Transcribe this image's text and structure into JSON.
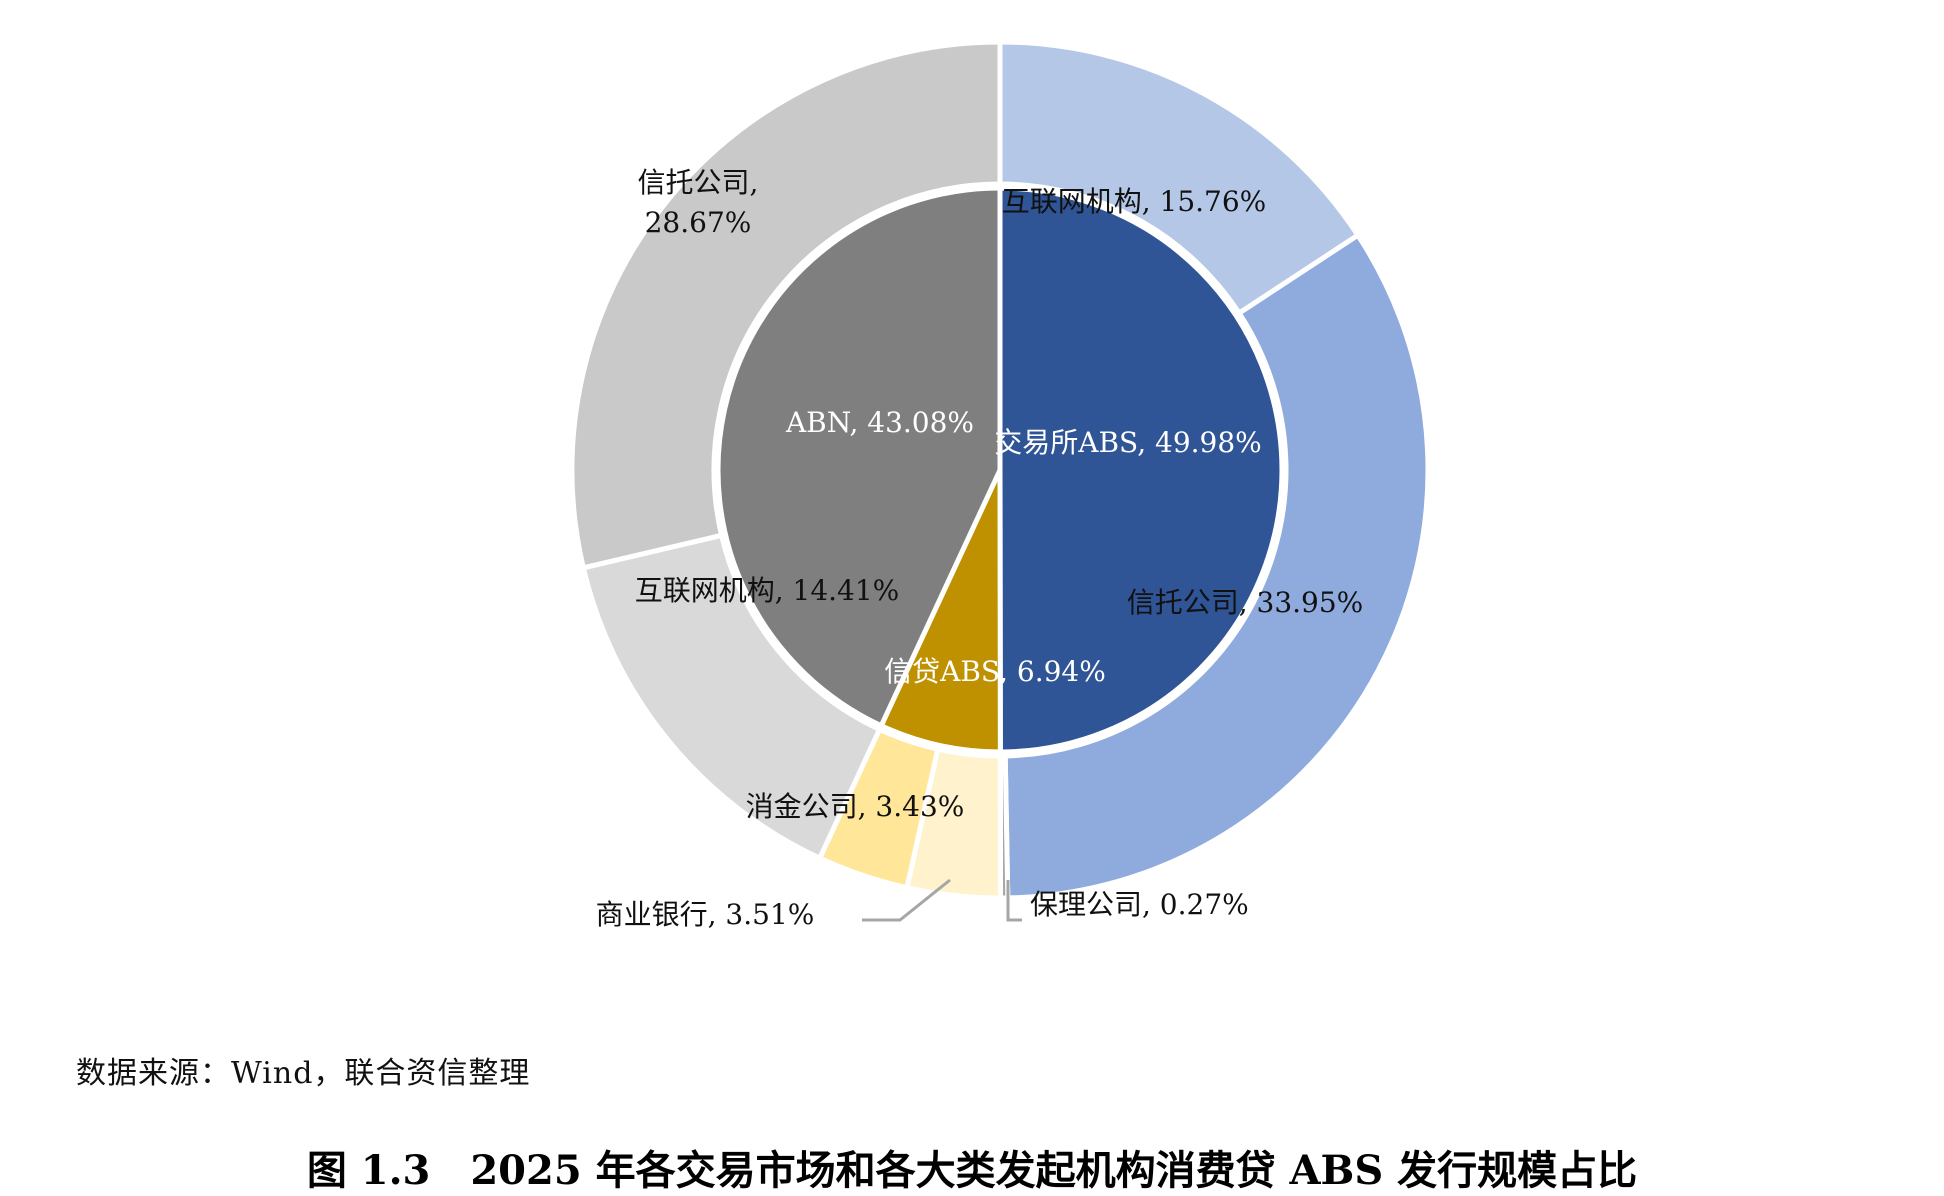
{
  "chart_data": {
    "type": "pie",
    "title": "",
    "inner_ring": [
      {
        "label": "交易所ABS",
        "value": 49.98,
        "text": "交易所ABS, 49.98%",
        "color": "#2f5597"
      },
      {
        "label": "信贷ABS",
        "value": 6.94,
        "text": "信贷ABS, 6.94%",
        "color": "#bf9000"
      },
      {
        "label": "ABN",
        "value": 43.08,
        "text": "ABN, 43.08%",
        "color": "#7f7f7f"
      }
    ],
    "outer_ring": [
      {
        "label": "互联网机构",
        "value": 15.76,
        "text": "互联网机构, 15.76%",
        "color": "#b4c7e7"
      },
      {
        "label": "信托公司",
        "value": 33.95,
        "text": "信托公司, 33.95%",
        "color": "#8faadc"
      },
      {
        "label": "保理公司",
        "value": 0.27,
        "text": "保理公司, 0.27%",
        "color": "#a6a6a6"
      },
      {
        "label": "商业银行",
        "value": 3.51,
        "text": "商业银行, 3.51%",
        "color": "#fff2cc"
      },
      {
        "label": "消金公司",
        "value": 3.43,
        "text": "消金公司, 3.43%",
        "color": "#ffe699"
      },
      {
        "label": "互联网机构",
        "value": 14.41,
        "text": "互联网机构, 14.41%",
        "color": "#d9d9d9"
      },
      {
        "label": "信托公司",
        "value": 28.67,
        "text": "信托公司,",
        "text2": "28.67%",
        "color": "#c9c9c9"
      }
    ]
  },
  "source": "数据来源：Wind，联合资信整理",
  "caption": "图 1.3　2025 年各交易市场和各大类发起机构消费贷 ABS 发行规模占比"
}
